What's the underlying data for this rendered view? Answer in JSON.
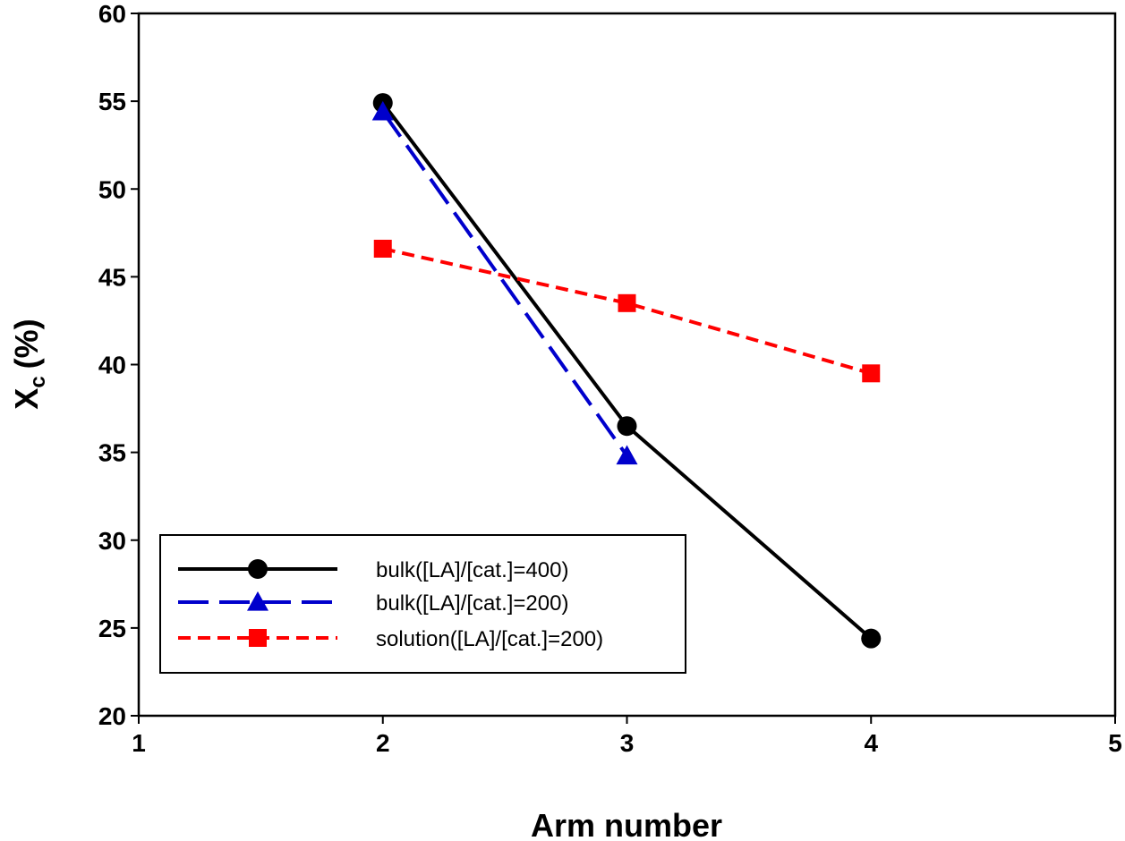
{
  "chart_data": {
    "type": "line",
    "xlabel": "Arm number",
    "ylabel_main": "X",
    "ylabel_sub": "c",
    "ylabel_unit": "(%)",
    "xlim": [
      1,
      5
    ],
    "ylim": [
      20,
      60
    ],
    "xticks": [
      1,
      2,
      3,
      4,
      5
    ],
    "yticks": [
      20,
      25,
      30,
      35,
      40,
      45,
      50,
      55,
      60
    ],
    "grid": false,
    "legend_position": "bottom-left",
    "series": [
      {
        "name": "bulk([LA]/[cat.]=400)",
        "x": [
          2,
          3,
          4
        ],
        "y": [
          54.9,
          36.5,
          24.4
        ],
        "color": "#000000",
        "marker": "circle",
        "line_style": "solid"
      },
      {
        "name": "bulk([LA]/[cat.]=200)",
        "x": [
          2,
          3
        ],
        "y": [
          54.4,
          34.8
        ],
        "color": "#0000cc",
        "marker": "triangle",
        "line_style": "long-dash"
      },
      {
        "name": "solution([LA]/[cat.]=200)",
        "x": [
          2,
          3,
          4
        ],
        "y": [
          46.6,
          43.5,
          39.5
        ],
        "color": "#ff0000",
        "marker": "square",
        "line_style": "short-dash"
      }
    ]
  }
}
